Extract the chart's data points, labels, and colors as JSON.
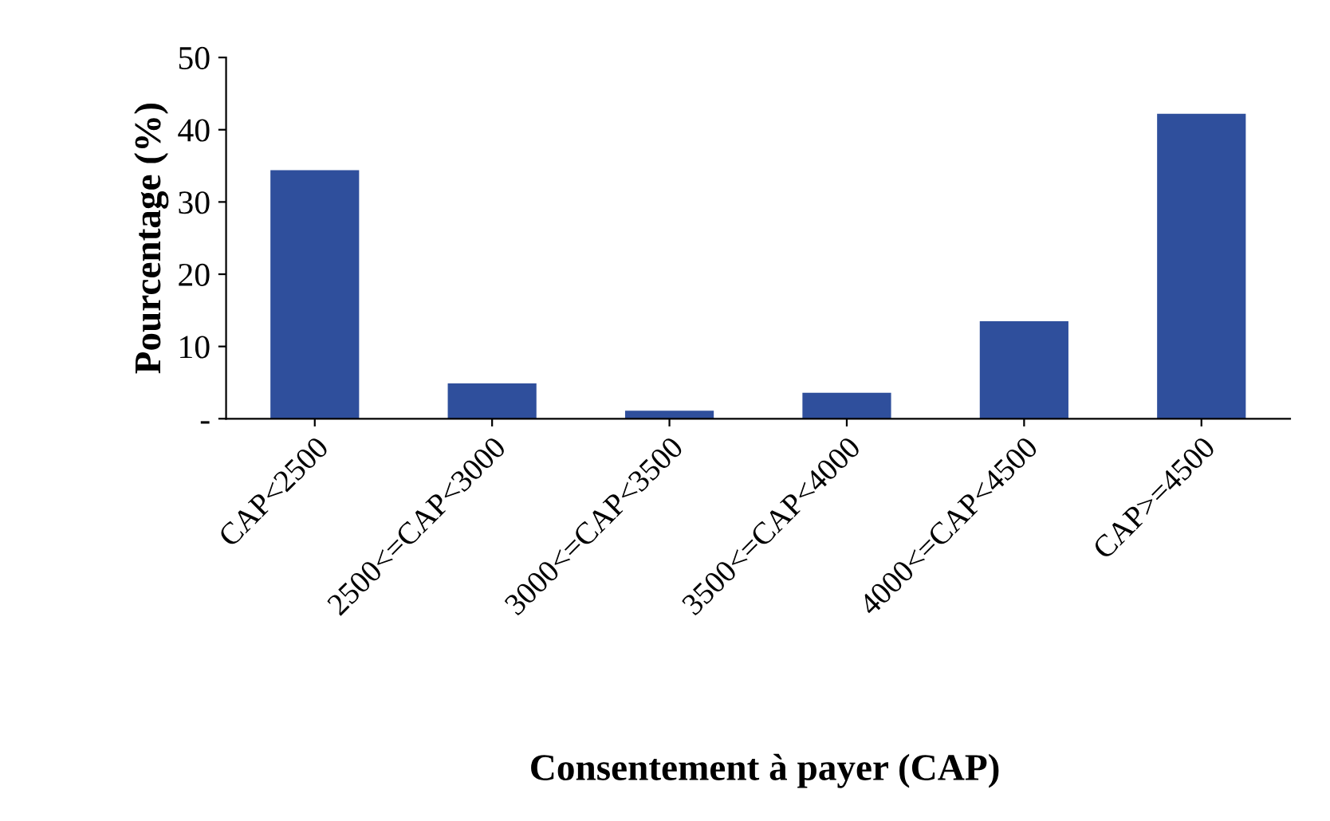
{
  "chart_data": {
    "type": "bar",
    "xlabel": "Consentement à payer (CAP)",
    "ylabel": "Pourcentage (%)",
    "categories": [
      "CAP<2500",
      "2500<=CAP<3000",
      "3000<=CAP<3500",
      "3500<=CAP<4000",
      "4000<=CAP<4500",
      "CAP>=4500"
    ],
    "values": [
      34.4,
      4.9,
      1.1,
      3.6,
      13.5,
      42.2
    ],
    "color": "#2f4f9c",
    "ylim": [
      0,
      50
    ],
    "yticks": [
      {
        "value": 0,
        "label": "-"
      },
      10,
      20,
      30,
      40,
      50
    ],
    "grid": false,
    "legend": false
  }
}
